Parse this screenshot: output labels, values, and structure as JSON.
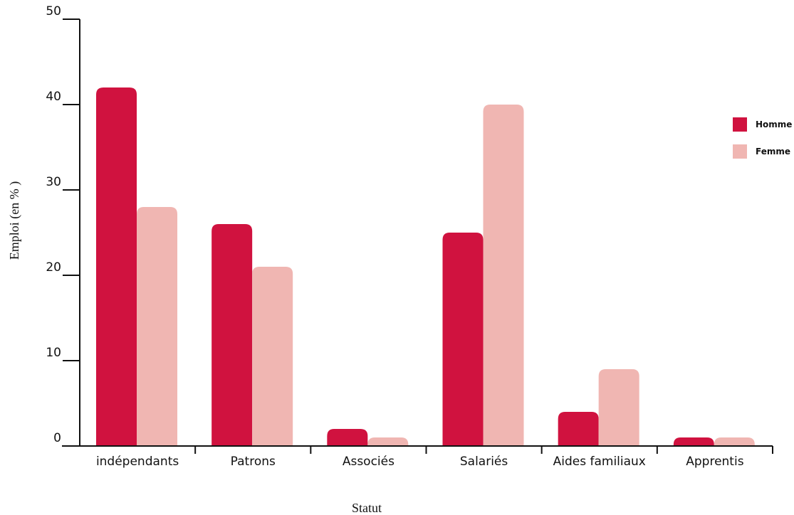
{
  "chart_data": {
    "type": "bar",
    "title": "",
    "xlabel": "Statut",
    "ylabel": "Emploi (en % )",
    "categories": [
      "indépendants",
      "Patrons",
      "Associés",
      "Salariés",
      "Aides familiaux",
      "Apprentis"
    ],
    "series": [
      {
        "name": "Homme",
        "color": "#D0123F",
        "values": [
          42,
          26,
          2,
          25,
          4,
          1
        ]
      },
      {
        "name": "Femme",
        "color": "#F0B6B2",
        "values": [
          28,
          21,
          1,
          40,
          9,
          1
        ]
      }
    ],
    "ylim": [
      0,
      50
    ],
    "yticks": [
      "0",
      "10",
      "20",
      "30",
      "40",
      "50"
    ],
    "grid": false,
    "legend_position": "right"
  }
}
